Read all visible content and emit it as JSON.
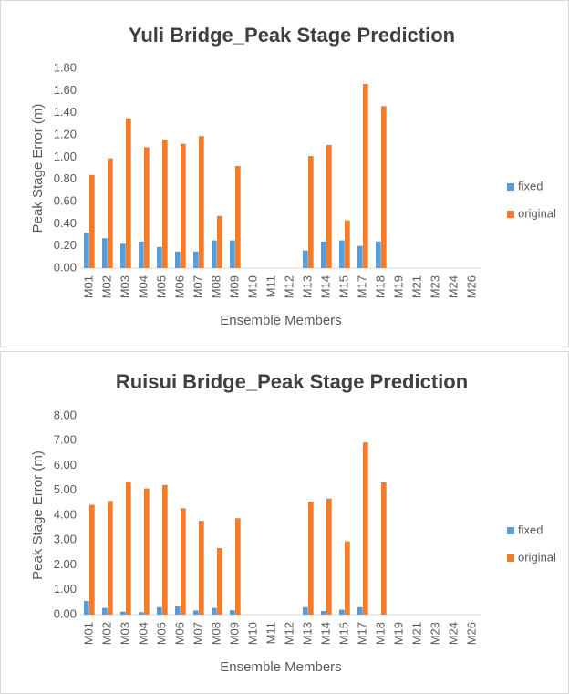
{
  "chart_data": [
    {
      "type": "bar",
      "title": "Yuli Bridge_Peak Stage Prediction",
      "x_label": "Ensemble Members",
      "y_label": "Peak Stage Error (m)",
      "categories": [
        "M01",
        "M02",
        "M03",
        "M04",
        "M05",
        "M06",
        "M07",
        "M08",
        "M09",
        "M10",
        "M11",
        "M12",
        "M13",
        "M14",
        "M15",
        "M17",
        "M18",
        "M19",
        "M21",
        "M23",
        "M24",
        "M26"
      ],
      "series": [
        {
          "name": "fixed",
          "color": "#5b9bd5",
          "values": [
            0.32,
            0.27,
            0.22,
            0.24,
            0.19,
            0.15,
            0.15,
            0.25,
            0.25,
            null,
            null,
            null,
            0.16,
            0.24,
            0.25,
            0.2,
            0.24,
            null,
            null,
            null,
            null,
            null
          ]
        },
        {
          "name": "original",
          "color": "#ed7d31",
          "values": [
            0.84,
            0.99,
            1.35,
            1.09,
            1.16,
            1.12,
            1.19,
            0.47,
            0.92,
            null,
            null,
            null,
            1.01,
            1.11,
            0.43,
            1.66,
            1.46,
            null,
            null,
            null,
            null,
            null
          ]
        }
      ],
      "ylim": [
        0,
        1.8
      ],
      "yticks": [
        {
          "value": 0,
          "label": "0.00"
        },
        {
          "value": 0.2,
          "label": "0.20"
        },
        {
          "value": 0.4,
          "label": "0.40"
        },
        {
          "value": 0.6,
          "label": "0.60"
        },
        {
          "value": 0.8,
          "label": "0.80"
        },
        {
          "value": 1.0,
          "label": "1.00"
        },
        {
          "value": 1.2,
          "label": "1.20"
        },
        {
          "value": 1.4,
          "label": "1.40"
        },
        {
          "value": 1.6,
          "label": "1.60"
        },
        {
          "value": 1.8,
          "label": "1.80"
        }
      ],
      "grid": false,
      "legend": "right"
    },
    {
      "type": "bar",
      "title": "Ruisui Bridge_Peak Stage Prediction",
      "x_label": "Ensemble Members",
      "y_label": "Peak Stage Error (m)",
      "categories": [
        "M01",
        "M02",
        "M03",
        "M04",
        "M05",
        "M06",
        "M07",
        "M08",
        "M09",
        "M10",
        "M11",
        "M12",
        "M13",
        "M14",
        "M15",
        "M17",
        "M18",
        "M19",
        "M21",
        "M23",
        "M24",
        "M26"
      ],
      "series": [
        {
          "name": "fixed",
          "color": "#5b9bd5",
          "values": [
            0.55,
            0.27,
            0.12,
            0.1,
            0.3,
            0.33,
            0.17,
            0.27,
            0.18,
            null,
            null,
            null,
            0.3,
            0.15,
            0.2,
            0.3,
            null,
            null,
            null,
            null,
            null,
            null
          ]
        },
        {
          "name": "original",
          "color": "#ed7d31",
          "values": [
            4.42,
            4.58,
            5.35,
            5.08,
            5.22,
            4.28,
            3.78,
            2.68,
            3.88,
            null,
            null,
            null,
            4.55,
            4.67,
            2.95,
            6.93,
            5.32,
            null,
            null,
            null,
            null,
            null
          ]
        }
      ],
      "ylim": [
        0,
        8
      ],
      "yticks": [
        {
          "value": 0,
          "label": "0.00"
        },
        {
          "value": 1,
          "label": "1.00"
        },
        {
          "value": 2,
          "label": "2.00"
        },
        {
          "value": 3,
          "label": "3.00"
        },
        {
          "value": 4,
          "label": "4.00"
        },
        {
          "value": 5,
          "label": "5.00"
        },
        {
          "value": 6,
          "label": "6.00"
        },
        {
          "value": 7,
          "label": "7.00"
        },
        {
          "value": 8,
          "label": "8.00"
        }
      ],
      "grid": false,
      "legend": "right"
    }
  ]
}
